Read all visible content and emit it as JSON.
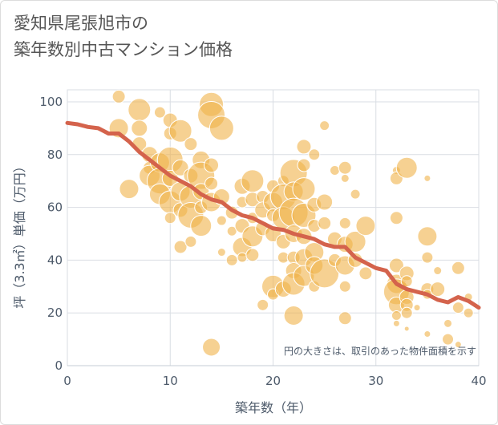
{
  "title_line1": "愛知県尾張旭市の",
  "title_line2": "築年数別中古マンション価格",
  "chart_data": {
    "type": "scatter",
    "xlabel": "築年数（年）",
    "ylabel": "坪（3.3㎡）単価（万円）",
    "xlim": [
      0,
      40
    ],
    "ylim": [
      0,
      105
    ],
    "x_ticks": [
      "0",
      "10",
      "20",
      "30",
      "40"
    ],
    "y_ticks": [
      "0",
      "20",
      "40",
      "60",
      "80",
      "100"
    ],
    "annotation": "円の大きさは、取引のあった物件面積を示す",
    "grid": true,
    "bubble_color": "#f0b34a",
    "line_color": "#d4634c",
    "trend": {
      "x": [
        0,
        1,
        2,
        3,
        4,
        5,
        6,
        7,
        8,
        9,
        10,
        11,
        12,
        13,
        14,
        15,
        16,
        17,
        18,
        19,
        20,
        21,
        22,
        23,
        24,
        25,
        26,
        27,
        28,
        29,
        30,
        31,
        32,
        33,
        34,
        35,
        36,
        37,
        38,
        39,
        40
      ],
      "y": [
        92,
        91.5,
        90.5,
        90,
        88,
        88,
        85,
        81,
        78,
        75,
        72,
        70,
        68,
        65,
        63,
        62,
        59,
        57,
        56,
        54,
        52,
        51.5,
        50,
        49,
        48,
        46,
        45,
        45,
        41,
        39,
        37,
        36,
        31,
        29,
        28,
        27,
        25,
        24,
        26,
        24.5,
        22
      ]
    },
    "points": [
      {
        "x": 5,
        "y": 102,
        "s": 8
      },
      {
        "x": 5,
        "y": 90,
        "s": 12
      },
      {
        "x": 6,
        "y": 67,
        "s": 12
      },
      {
        "x": 7,
        "y": 97,
        "s": 14
      },
      {
        "x": 7,
        "y": 90,
        "s": 10
      },
      {
        "x": 7,
        "y": 84,
        "s": 9
      },
      {
        "x": 8,
        "y": 80,
        "s": 10
      },
      {
        "x": 8,
        "y": 75,
        "s": 8
      },
      {
        "x": 8,
        "y": 72,
        "s": 13
      },
      {
        "x": 9,
        "y": 96,
        "s": 7
      },
      {
        "x": 9,
        "y": 77,
        "s": 12
      },
      {
        "x": 9,
        "y": 70,
        "s": 16
      },
      {
        "x": 9,
        "y": 65,
        "s": 13
      },
      {
        "x": 10,
        "y": 93,
        "s": 9
      },
      {
        "x": 10,
        "y": 88,
        "s": 8
      },
      {
        "x": 10,
        "y": 78,
        "s": 16
      },
      {
        "x": 10,
        "y": 71,
        "s": 10
      },
      {
        "x": 10,
        "y": 62,
        "s": 14
      },
      {
        "x": 10,
        "y": 56,
        "s": 7
      },
      {
        "x": 11,
        "y": 89,
        "s": 14
      },
      {
        "x": 11,
        "y": 75,
        "s": 10
      },
      {
        "x": 11,
        "y": 66,
        "s": 12
      },
      {
        "x": 11,
        "y": 59,
        "s": 9
      },
      {
        "x": 11,
        "y": 45,
        "s": 8
      },
      {
        "x": 12,
        "y": 84,
        "s": 8
      },
      {
        "x": 12,
        "y": 72,
        "s": 9
      },
      {
        "x": 12,
        "y": 64,
        "s": 14
      },
      {
        "x": 12,
        "y": 57,
        "s": 16
      },
      {
        "x": 12,
        "y": 47,
        "s": 7
      },
      {
        "x": 13,
        "y": 78,
        "s": 11
      },
      {
        "x": 13,
        "y": 72,
        "s": 17
      },
      {
        "x": 13,
        "y": 66,
        "s": 10
      },
      {
        "x": 13,
        "y": 60,
        "s": 8
      },
      {
        "x": 13,
        "y": 53,
        "s": 13
      },
      {
        "x": 14,
        "y": 99,
        "s": 15
      },
      {
        "x": 14,
        "y": 95,
        "s": 17
      },
      {
        "x": 14,
        "y": 76,
        "s": 9
      },
      {
        "x": 14,
        "y": 69,
        "s": 8
      },
      {
        "x": 14,
        "y": 62,
        "s": 12
      },
      {
        "x": 14,
        "y": 7,
        "s": 11
      },
      {
        "x": 15,
        "y": 90,
        "s": 15
      },
      {
        "x": 15,
        "y": 64,
        "s": 10
      },
      {
        "x": 15,
        "y": 55,
        "s": 6
      },
      {
        "x": 15,
        "y": 43,
        "s": 5
      },
      {
        "x": 16,
        "y": 58,
        "s": 8
      },
      {
        "x": 16,
        "y": 51,
        "s": 6
      },
      {
        "x": 16,
        "y": 40,
        "s": 7
      },
      {
        "x": 17,
        "y": 68,
        "s": 10
      },
      {
        "x": 17,
        "y": 62,
        "s": 7
      },
      {
        "x": 17,
        "y": 53,
        "s": 9
      },
      {
        "x": 17,
        "y": 45,
        "s": 12
      },
      {
        "x": 17,
        "y": 41,
        "s": 6
      },
      {
        "x": 18,
        "y": 70,
        "s": 14
      },
      {
        "x": 18,
        "y": 63,
        "s": 9
      },
      {
        "x": 18,
        "y": 56,
        "s": 7
      },
      {
        "x": 18,
        "y": 49,
        "s": 13
      },
      {
        "x": 18,
        "y": 42,
        "s": 8
      },
      {
        "x": 19,
        "y": 64,
        "s": 8
      },
      {
        "x": 19,
        "y": 59,
        "s": 10
      },
      {
        "x": 19,
        "y": 52,
        "s": 9
      },
      {
        "x": 19,
        "y": 23,
        "s": 7
      },
      {
        "x": 20,
        "y": 68,
        "s": 8
      },
      {
        "x": 20,
        "y": 62,
        "s": 12
      },
      {
        "x": 20,
        "y": 57,
        "s": 8
      },
      {
        "x": 20,
        "y": 50,
        "s": 10
      },
      {
        "x": 20,
        "y": 30,
        "s": 14
      },
      {
        "x": 20,
        "y": 27,
        "s": 7
      },
      {
        "x": 21,
        "y": 70,
        "s": 7
      },
      {
        "x": 21,
        "y": 64,
        "s": 16
      },
      {
        "x": 21,
        "y": 56,
        "s": 14
      },
      {
        "x": 21,
        "y": 47,
        "s": 9
      },
      {
        "x": 21,
        "y": 41,
        "s": 7
      },
      {
        "x": 21,
        "y": 29,
        "s": 10
      },
      {
        "x": 22,
        "y": 73,
        "s": 17
      },
      {
        "x": 22,
        "y": 66,
        "s": 12
      },
      {
        "x": 22,
        "y": 58,
        "s": 18
      },
      {
        "x": 22,
        "y": 50,
        "s": 11
      },
      {
        "x": 22,
        "y": 41,
        "s": 8
      },
      {
        "x": 22,
        "y": 36,
        "s": 10
      },
      {
        "x": 22,
        "y": 31,
        "s": 14
      },
      {
        "x": 22,
        "y": 19,
        "s": 12
      },
      {
        "x": 23,
        "y": 83,
        "s": 9
      },
      {
        "x": 23,
        "y": 76,
        "s": 8
      },
      {
        "x": 23,
        "y": 67,
        "s": 14
      },
      {
        "x": 23,
        "y": 57,
        "s": 15
      },
      {
        "x": 23,
        "y": 49,
        "s": 10
      },
      {
        "x": 23,
        "y": 41,
        "s": 11
      },
      {
        "x": 23,
        "y": 34,
        "s": 13
      },
      {
        "x": 24,
        "y": 80,
        "s": 7
      },
      {
        "x": 24,
        "y": 61,
        "s": 9
      },
      {
        "x": 24,
        "y": 53,
        "s": 8
      },
      {
        "x": 24,
        "y": 43,
        "s": 12
      },
      {
        "x": 24,
        "y": 38,
        "s": 11
      },
      {
        "x": 24,
        "y": 30,
        "s": 7
      },
      {
        "x": 25,
        "y": 91,
        "s": 6
      },
      {
        "x": 25,
        "y": 62,
        "s": 10
      },
      {
        "x": 25,
        "y": 54,
        "s": 8
      },
      {
        "x": 25,
        "y": 35,
        "s": 18
      },
      {
        "x": 26,
        "y": 74,
        "s": 6
      },
      {
        "x": 26,
        "y": 48,
        "s": 9
      },
      {
        "x": 26,
        "y": 40,
        "s": 8
      },
      {
        "x": 27,
        "y": 75,
        "s": 8
      },
      {
        "x": 27,
        "y": 71,
        "s": 5
      },
      {
        "x": 27,
        "y": 54,
        "s": 7
      },
      {
        "x": 27,
        "y": 46,
        "s": 10
      },
      {
        "x": 27,
        "y": 38,
        "s": 12
      },
      {
        "x": 27,
        "y": 30,
        "s": 7
      },
      {
        "x": 27,
        "y": 18,
        "s": 8
      },
      {
        "x": 28,
        "y": 65,
        "s": 6
      },
      {
        "x": 28,
        "y": 47,
        "s": 13
      },
      {
        "x": 28,
        "y": 40,
        "s": 9
      },
      {
        "x": 29,
        "y": 53,
        "s": 12
      },
      {
        "x": 29,
        "y": 35,
        "s": 8
      },
      {
        "x": 32,
        "y": 74,
        "s": 5
      },
      {
        "x": 32,
        "y": 71,
        "s": 8
      },
      {
        "x": 32,
        "y": 56,
        "s": 8
      },
      {
        "x": 32,
        "y": 38,
        "s": 9
      },
      {
        "x": 32,
        "y": 31,
        "s": 12
      },
      {
        "x": 32,
        "y": 28,
        "s": 16
      },
      {
        "x": 32,
        "y": 23,
        "s": 10
      },
      {
        "x": 32,
        "y": 19,
        "s": 6
      },
      {
        "x": 32,
        "y": 16,
        "s": 4
      },
      {
        "x": 33,
        "y": 75,
        "s": 13
      },
      {
        "x": 33,
        "y": 35,
        "s": 9
      },
      {
        "x": 33,
        "y": 32,
        "s": 7
      },
      {
        "x": 33,
        "y": 26,
        "s": 9
      },
      {
        "x": 33,
        "y": 23,
        "s": 8
      },
      {
        "x": 33,
        "y": 20,
        "s": 7
      },
      {
        "x": 33,
        "y": 14,
        "s": 3
      },
      {
        "x": 34,
        "y": 22,
        "s": 4
      },
      {
        "x": 35,
        "y": 71,
        "s": 4
      },
      {
        "x": 35,
        "y": 49,
        "s": 12
      },
      {
        "x": 35,
        "y": 41,
        "s": 7
      },
      {
        "x": 35,
        "y": 29,
        "s": 8
      },
      {
        "x": 35,
        "y": 27,
        "s": 6
      },
      {
        "x": 35,
        "y": 12,
        "s": 4
      },
      {
        "x": 36,
        "y": 36,
        "s": 5
      },
      {
        "x": 36,
        "y": 29,
        "s": 9
      },
      {
        "x": 37,
        "y": 16,
        "s": 5
      },
      {
        "x": 37,
        "y": 10,
        "s": 7
      },
      {
        "x": 38,
        "y": 37,
        "s": 8
      },
      {
        "x": 38,
        "y": 22,
        "s": 7
      },
      {
        "x": 38,
        "y": 8,
        "s": 4
      },
      {
        "x": 39,
        "y": 26,
        "s": 5
      },
      {
        "x": 39,
        "y": 20,
        "s": 6
      }
    ]
  }
}
